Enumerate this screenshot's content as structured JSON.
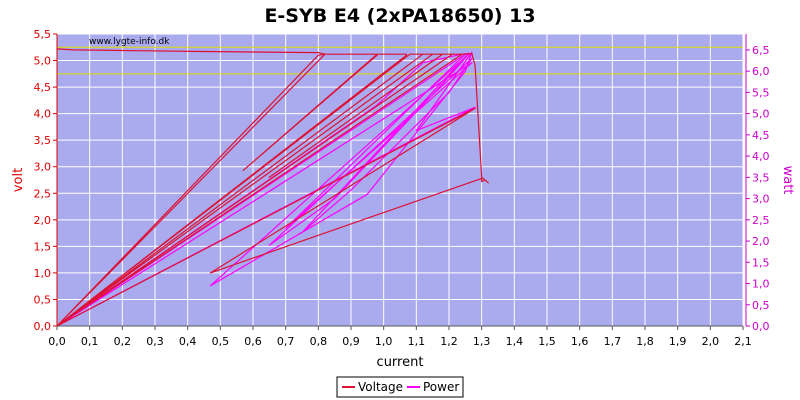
{
  "chart_data": {
    "type": "line",
    "title": "E-SYB E4 (2xPA18650) 13",
    "watermark": "www.lygte-info.dk",
    "xlabel": "current",
    "ylabel_left": "volt",
    "ylabel_right": "watt",
    "xlim": [
      0,
      2.1
    ],
    "ylim_left": [
      0,
      5.5
    ],
    "ylim_right": [
      0,
      6.875
    ],
    "x_ticks": [
      "0,0",
      "0,1",
      "0,2",
      "0,3",
      "0,4",
      "0,5",
      "0,6",
      "0,7",
      "0,8",
      "0,9",
      "1,0",
      "1,1",
      "1,2",
      "1,3",
      "1,4",
      "1,5",
      "1,6",
      "1,7",
      "1,8",
      "1,9",
      "2,0",
      "2,1"
    ],
    "y_left_ticks": [
      "0,0",
      "0,5",
      "1,0",
      "1,5",
      "2,0",
      "2,5",
      "3,0",
      "3,5",
      "4,0",
      "4,5",
      "5,0",
      "5,5"
    ],
    "y_right_ticks": [
      "0,0",
      "0,5",
      "1,0",
      "1,5",
      "2,0",
      "2,5",
      "3,0",
      "3,5",
      "4,0",
      "4,5",
      "5,0",
      "5,5",
      "6,0",
      "6,5"
    ],
    "reference_lines_volt": [
      5.25,
      4.75
    ],
    "grid": true,
    "legend_placement": "bottom-center",
    "colors": {
      "plot_bg": "#aaaaee",
      "grid": "#ffffff",
      "voltage": "#dd1133",
      "power": "#ff00ff",
      "reference": "#dddd00",
      "left_axis": "#dd0000",
      "right_axis": "#cc00cc"
    },
    "series": [
      {
        "name": "Voltage",
        "axis": "left",
        "x": [
          0.0,
          0.05,
          0.2,
          0.45,
          0.8,
          0.82,
          0.8,
          0.0,
          0.82,
          0.98,
          0.98,
          0.57,
          0.98,
          1.07,
          1.07,
          0.0,
          1.08,
          1.12,
          0.0,
          1.12,
          1.15,
          0.0,
          1.15,
          1.18,
          0.65,
          1.18,
          1.21,
          0.0,
          1.21,
          1.24,
          0.0,
          1.24,
          1.27,
          1.28,
          1.3,
          1.32,
          1.31,
          1.3,
          1.3,
          0.47,
          1.28,
          0.0,
          1.28,
          0.0
        ],
        "y": [
          5.22,
          5.2,
          5.19,
          5.17,
          5.15,
          5.12,
          5.1,
          0.0,
          5.12,
          5.12,
          5.1,
          2.93,
          5.12,
          5.12,
          5.1,
          0.0,
          5.12,
          5.12,
          0.0,
          5.12,
          5.12,
          0.0,
          5.12,
          5.12,
          2.8,
          5.12,
          5.12,
          0.0,
          5.12,
          5.12,
          0.0,
          5.12,
          5.13,
          4.9,
          2.8,
          2.7,
          2.75,
          2.72,
          2.78,
          1.0,
          4.1,
          0.0,
          4.1,
          0.0
        ]
      },
      {
        "name": "Power",
        "axis": "right",
        "x": [
          0.0,
          0.98,
          1.12,
          1.15,
          1.18,
          1.21,
          1.24,
          1.26,
          0.75,
          0.9,
          1.2,
          1.27,
          0.65,
          0.85,
          1.18,
          1.26,
          0.47,
          0.95,
          1.25,
          1.27,
          1.1,
          1.28,
          0.0,
          1.27,
          0.7,
          1.25,
          0.0
        ],
        "y": [
          0.0,
          5.2,
          6.2,
          6.25,
          6.3,
          6.35,
          6.4,
          6.42,
          2.2,
          3.2,
          5.5,
          6.3,
          1.9,
          3.0,
          5.7,
          6.4,
          0.95,
          3.1,
          6.0,
          6.45,
          4.6,
          5.15,
          0.0,
          6.2,
          2.3,
          6.4,
          0.0
        ]
      }
    ]
  }
}
